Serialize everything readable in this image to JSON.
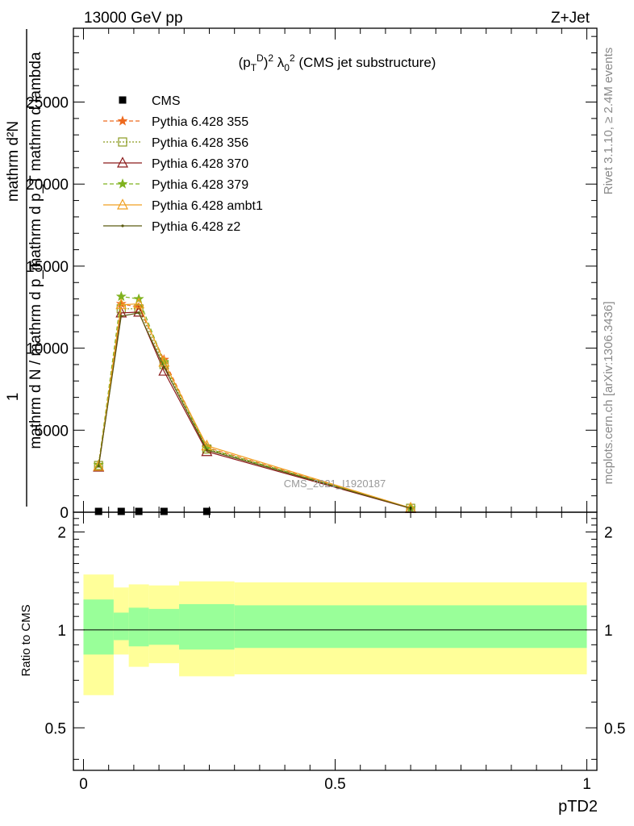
{
  "header": {
    "energy_label": "13000 GeV pp",
    "process_label": "Z+Jet"
  },
  "side_labels": {
    "rivet": "Rivet 3.1.10, ≥ 2.4M events",
    "mcplots": "mcplots.cern.ch [arXiv:1306.3436]"
  },
  "plot_title": "(p_T^D)^2 λ_0^2 (CMS jet substructure)",
  "watermark": "CMS_2021_I1920187",
  "main_ylabel": {
    "top_numerator": "mathrm d²N",
    "top_denominator": "mathrm d p_T mathrm d lambda",
    "front_numerator": "1",
    "front_denominator": "mathrm d N / mathrm d p_T"
  },
  "ratio_ylabel": "Ratio to CMS",
  "xlabel": "pTD2",
  "legend": {
    "entries": [
      {
        "label": "CMS",
        "color": "#000000",
        "marker": "square",
        "dash": ""
      },
      {
        "label": "Pythia 6.428 355",
        "color": "#ee6a1f",
        "marker": "star",
        "dash": "5,3"
      },
      {
        "label": "Pythia 6.428 356",
        "color": "#8a9a1e",
        "marker": "square-open",
        "dash": "2,2"
      },
      {
        "label": "Pythia 6.428 370",
        "color": "#8b1a1a",
        "marker": "triangle-open",
        "dash": ""
      },
      {
        "label": "Pythia 6.428 379",
        "color": "#7fb21e",
        "marker": "star",
        "dash": "5,3"
      },
      {
        "label": "Pythia 6.428 ambt1",
        "color": "#f0a020",
        "marker": "triangle-open",
        "dash": ""
      },
      {
        "label": "Pythia 6.428 z2",
        "color": "#5a5a10",
        "marker": "dot",
        "dash": ""
      }
    ]
  },
  "chart_data": [
    {
      "type": "line",
      "panel": "main",
      "xlim": [
        -0.02,
        1.02
      ],
      "ylim": [
        0,
        29500
      ],
      "yticks": [
        0,
        5000,
        10000,
        15000,
        20000,
        25000
      ],
      "ytick_labels": [
        "0",
        "5000",
        "10000",
        "15000",
        "20000",
        "25000"
      ],
      "x": [
        0.03,
        0.075,
        0.11,
        0.16,
        0.245,
        0.65
      ],
      "series": [
        {
          "name": "CMS",
          "values": [
            0,
            0,
            0,
            0,
            0,
            null
          ]
        },
        {
          "name": "Pythia 6.428 355",
          "values": [
            2900,
            12700,
            12500,
            9300,
            3950,
            250
          ]
        },
        {
          "name": "Pythia 6.428 356",
          "values": [
            2850,
            12400,
            12400,
            9000,
            3850,
            240
          ]
        },
        {
          "name": "Pythia 6.428 370",
          "values": [
            2750,
            12150,
            12200,
            8600,
            3700,
            230
          ]
        },
        {
          "name": "Pythia 6.428 379",
          "values": [
            2900,
            13150,
            13000,
            9150,
            3900,
            250
          ]
        },
        {
          "name": "Pythia 6.428 ambt1",
          "values": [
            2800,
            12650,
            12700,
            9150,
            4050,
            260
          ]
        },
        {
          "name": "Pythia 6.428 z2",
          "values": [
            2800,
            11950,
            12150,
            8850,
            3800,
            240
          ]
        }
      ]
    },
    {
      "type": "area",
      "panel": "ratio",
      "xlim": [
        -0.02,
        1.02
      ],
      "ylim": [
        0.37,
        2.3
      ],
      "ylog": true,
      "yticks": [
        0.5,
        1,
        2
      ],
      "ytick_labels": [
        "0.5",
        "1",
        "2"
      ],
      "xticks": [
        0,
        0.5,
        1
      ],
      "xtick_labels": [
        "0",
        "0.5",
        "1"
      ],
      "bin_edges": [
        0,
        0.06,
        0.09,
        0.13,
        0.19,
        0.3,
        1.0
      ],
      "band_outer_low": [
        0.63,
        0.84,
        0.77,
        0.79,
        0.72,
        0.73
      ],
      "band_outer_high": [
        1.48,
        1.35,
        1.38,
        1.37,
        1.41,
        1.4
      ],
      "band_inner_low": [
        0.84,
        0.93,
        0.89,
        0.9,
        0.87,
        0.88
      ],
      "band_inner_high": [
        1.24,
        1.13,
        1.17,
        1.16,
        1.2,
        1.19
      ],
      "reference": 1
    }
  ],
  "colors": {
    "band_outer": "#ffff99",
    "band_inner": "#99ff99"
  }
}
